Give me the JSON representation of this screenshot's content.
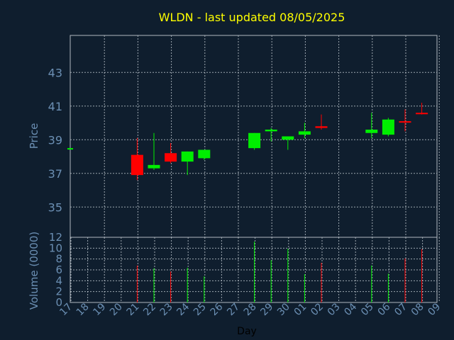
{
  "chart_data": {
    "type": "candlestick",
    "title": "WLDN - last updated 08/05/2025",
    "ylabel": "Price",
    "volume_label": "Volume (0000)",
    "xlabel": "Day",
    "price_ylim": [
      33.2,
      45.2
    ],
    "price_ticks": [
      "35",
      "37",
      "39",
      "41",
      "43"
    ],
    "price_tick_values": [
      35,
      37,
      39,
      41,
      43
    ],
    "volume_ylim": [
      0,
      12
    ],
    "volume_ticks": [
      "0",
      "2",
      "4",
      "6",
      "8",
      "10",
      "12"
    ],
    "volume_tick_values": [
      0,
      2,
      4,
      6,
      8,
      10,
      12
    ],
    "x_ticks": [
      "17",
      "18",
      "19",
      "20",
      "21",
      "22",
      "23",
      "24",
      "25",
      "26",
      "27",
      "28",
      "29",
      "30",
      "01",
      "02",
      "03",
      "04",
      "05",
      "06",
      "07",
      "08",
      "09"
    ],
    "grid": true,
    "up_color": "#00ee00",
    "down_color": "#ff0000",
    "candles": [
      {
        "day": "17",
        "open": 38.5,
        "close": 38.5,
        "high": 38.5,
        "low": 38.5,
        "volume": 0,
        "color": "#00ee00"
      },
      {
        "day": "21",
        "open": 38.1,
        "close": 36.9,
        "high": 39.1,
        "low": 36.6,
        "volume": 6.8,
        "color": "#ff0000"
      },
      {
        "day": "22",
        "open": 37.3,
        "close": 37.5,
        "high": 39.4,
        "low": 37.2,
        "volume": 6.3,
        "color": "#00ee00"
      },
      {
        "day": "23",
        "open": 38.2,
        "close": 37.7,
        "high": 38.8,
        "low": 37.6,
        "volume": 5.7,
        "color": "#ff0000"
      },
      {
        "day": "24",
        "open": 37.7,
        "close": 38.3,
        "high": 38.3,
        "low": 36.9,
        "volume": 6.4,
        "color": "#00ee00"
      },
      {
        "day": "25",
        "open": 37.9,
        "close": 38.4,
        "high": 38.4,
        "low": 37.8,
        "volume": 4.8,
        "color": "#00ee00"
      },
      {
        "day": "28",
        "open": 38.5,
        "close": 39.4,
        "high": 39.4,
        "low": 38.4,
        "volume": 11.2,
        "color": "#00ee00"
      },
      {
        "day": "29",
        "open": 39.5,
        "close": 39.6,
        "high": 39.7,
        "low": 38.9,
        "volume": 7.8,
        "color": "#00ee00"
      },
      {
        "day": "30",
        "open": 39.0,
        "close": 39.2,
        "high": 39.2,
        "low": 38.4,
        "volume": 9.9,
        "color": "#00ee00"
      },
      {
        "day": "01",
        "open": 39.3,
        "close": 39.5,
        "high": 40.0,
        "low": 39.1,
        "volume": 5.2,
        "color": "#00ee00"
      },
      {
        "day": "02",
        "open": 39.8,
        "close": 39.7,
        "high": 40.5,
        "low": 39.6,
        "volume": 7.3,
        "color": "#ff0000"
      },
      {
        "day": "05",
        "open": 39.4,
        "close": 39.6,
        "high": 40.6,
        "low": 39.1,
        "volume": 6.8,
        "color": "#00ee00"
      },
      {
        "day": "06",
        "open": 39.3,
        "close": 40.2,
        "high": 40.3,
        "low": 39.2,
        "volume": 5.3,
        "color": "#00ee00"
      },
      {
        "day": "07",
        "open": 40.1,
        "close": 40.1,
        "high": 40.8,
        "low": 39.5,
        "volume": 8.1,
        "color": "#ff0000"
      },
      {
        "day": "08",
        "open": 40.6,
        "close": 40.6,
        "high": 41.2,
        "low": 40.5,
        "volume": 9.8,
        "color": "#ff0000"
      }
    ]
  }
}
